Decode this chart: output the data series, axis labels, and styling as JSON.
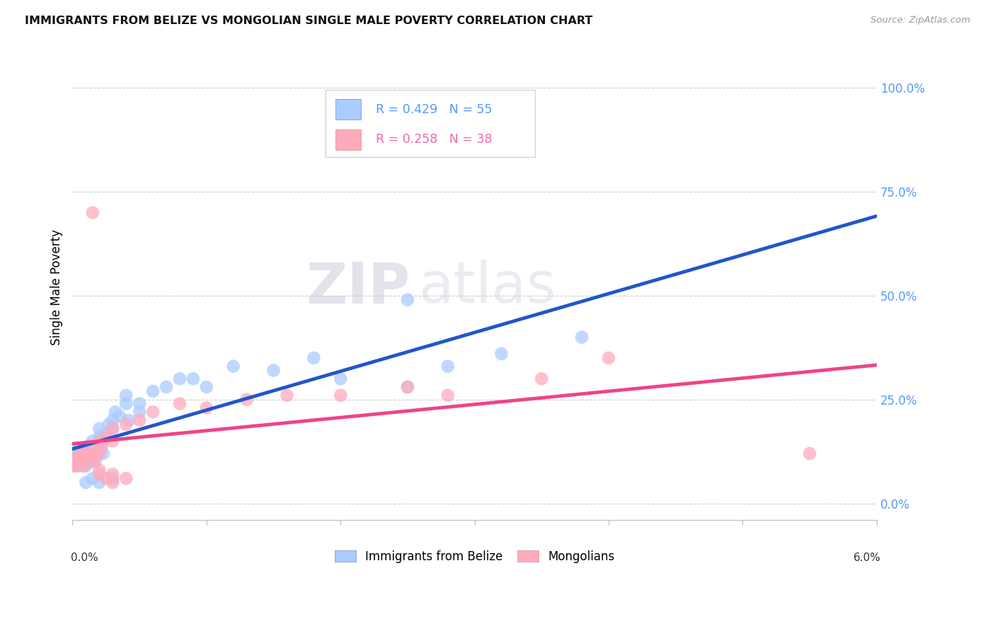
{
  "title": "IMMIGRANTS FROM BELIZE VS MONGOLIAN SINGLE MALE POVERTY CORRELATION CHART",
  "source": "Source: ZipAtlas.com",
  "ylabel": "Single Male Poverty",
  "ytick_labels": [
    "0.0%",
    "25.0%",
    "50.0%",
    "75.0%",
    "100.0%"
  ],
  "ytick_values": [
    0.0,
    0.25,
    0.5,
    0.75,
    1.0
  ],
  "xlim": [
    0,
    0.06
  ],
  "ylim": [
    -0.04,
    1.08
  ],
  "legend_r1": "R = 0.429   N = 55",
  "legend_r2": "R = 0.258   N = 38",
  "color_belize": "#aaccff",
  "color_mongolian": "#ffaabb",
  "line_color_belize": "#2255cc",
  "line_color_mongolian": "#ee4488",
  "watermark_zip": "ZIP",
  "watermark_atlas": "atlas",
  "belize_x": [
    0.0001,
    0.0002,
    0.0002,
    0.0003,
    0.0003,
    0.0004,
    0.0005,
    0.0006,
    0.0007,
    0.0008,
    0.0009,
    0.001,
    0.001,
    0.0012,
    0.0013,
    0.0014,
    0.0015,
    0.0015,
    0.0016,
    0.0017,
    0.0018,
    0.002,
    0.002,
    0.0021,
    0.0022,
    0.0023,
    0.0025,
    0.0027,
    0.003,
    0.003,
    0.0032,
    0.0035,
    0.004,
    0.004,
    0.0042,
    0.005,
    0.005,
    0.006,
    0.007,
    0.008,
    0.009,
    0.01,
    0.012,
    0.015,
    0.018,
    0.02,
    0.025,
    0.028,
    0.032,
    0.038,
    0.001,
    0.0015,
    0.002,
    0.003,
    0.025
  ],
  "belize_y": [
    0.1,
    0.12,
    0.1,
    0.11,
    0.13,
    0.09,
    0.11,
    0.1,
    0.12,
    0.13,
    0.1,
    0.09,
    0.12,
    0.1,
    0.14,
    0.13,
    0.11,
    0.15,
    0.12,
    0.1,
    0.14,
    0.16,
    0.18,
    0.13,
    0.15,
    0.12,
    0.17,
    0.19,
    0.18,
    0.2,
    0.22,
    0.21,
    0.24,
    0.26,
    0.2,
    0.22,
    0.24,
    0.27,
    0.28,
    0.3,
    0.3,
    0.28,
    0.33,
    0.32,
    0.35,
    0.3,
    0.28,
    0.33,
    0.36,
    0.4,
    0.05,
    0.06,
    0.05,
    0.06,
    0.49
  ],
  "mongolian_x": [
    0.0001,
    0.0002,
    0.0003,
    0.0004,
    0.0005,
    0.0006,
    0.0008,
    0.001,
    0.0012,
    0.0014,
    0.0015,
    0.0017,
    0.002,
    0.002,
    0.0022,
    0.0025,
    0.003,
    0.003,
    0.004,
    0.005,
    0.006,
    0.008,
    0.01,
    0.013,
    0.016,
    0.02,
    0.025,
    0.028,
    0.035,
    0.04,
    0.0015,
    0.002,
    0.0025,
    0.003,
    0.004,
    0.055,
    0.002,
    0.003
  ],
  "mongolian_y": [
    0.09,
    0.1,
    0.09,
    0.11,
    0.1,
    0.12,
    0.09,
    0.11,
    0.12,
    0.1,
    0.13,
    0.11,
    0.12,
    0.15,
    0.14,
    0.16,
    0.15,
    0.18,
    0.19,
    0.2,
    0.22,
    0.24,
    0.23,
    0.25,
    0.26,
    0.26,
    0.28,
    0.26,
    0.3,
    0.35,
    0.7,
    0.07,
    0.06,
    0.07,
    0.06,
    0.12,
    0.08,
    0.05
  ]
}
